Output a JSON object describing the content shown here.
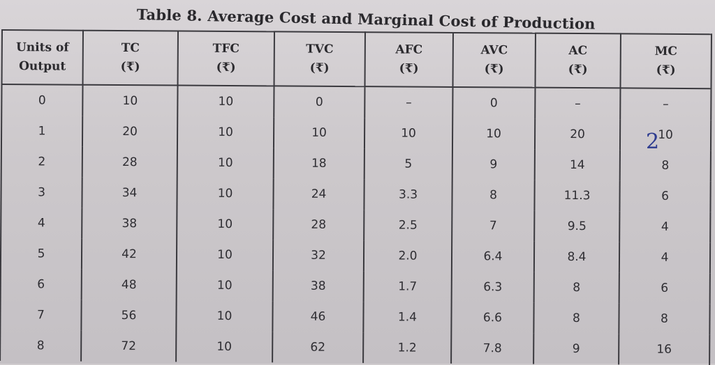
{
  "title": "Table  8. Average Cost and Marginal Cost of Production",
  "headers": [
    {
      "line1": "Units of",
      "line2": "Output"
    },
    {
      "line1": "TC",
      "line2": "(₹)"
    },
    {
      "line1": "TFC",
      "line2": "(₹)"
    },
    {
      "line1": "TVC",
      "line2": "(₹)"
    },
    {
      "line1": "AFC",
      "line2": "(₹)"
    },
    {
      "line1": "AVC",
      "line2": "(₹)"
    },
    {
      "line1": "AC",
      "line2": "(₹)"
    },
    {
      "line1": "MC",
      "line2": "(₹)"
    }
  ],
  "rows": [
    [
      "0",
      "10",
      "10",
      "0",
      "–",
      "0",
      "–",
      "–"
    ],
    [
      "1",
      "20",
      "10",
      "10",
      "10",
      "10",
      "20",
      "10"
    ],
    [
      "2",
      "28",
      "10",
      "18",
      "5",
      "9",
      "14",
      "8"
    ],
    [
      "3",
      "34",
      "10",
      "24",
      "3.3",
      "8",
      "11.3",
      "6"
    ],
    [
      "4",
      "38",
      "10",
      "28",
      "2.5",
      "7",
      "9.5",
      "4"
    ],
    [
      "5",
      "42",
      "10",
      "32",
      "2.0",
      "6.4",
      "8.4",
      "4"
    ],
    [
      "6",
      "48",
      "10",
      "38",
      "1.7",
      "6.3",
      "8",
      "6"
    ],
    [
      "7",
      "56",
      "10",
      "46",
      "1.4",
      "6.6",
      "8",
      "8"
    ],
    [
      "8",
      "72",
      "10",
      "62",
      "1.2",
      "7.8",
      "9",
      "16"
    ]
  ],
  "handwritten_mark": "2"
}
